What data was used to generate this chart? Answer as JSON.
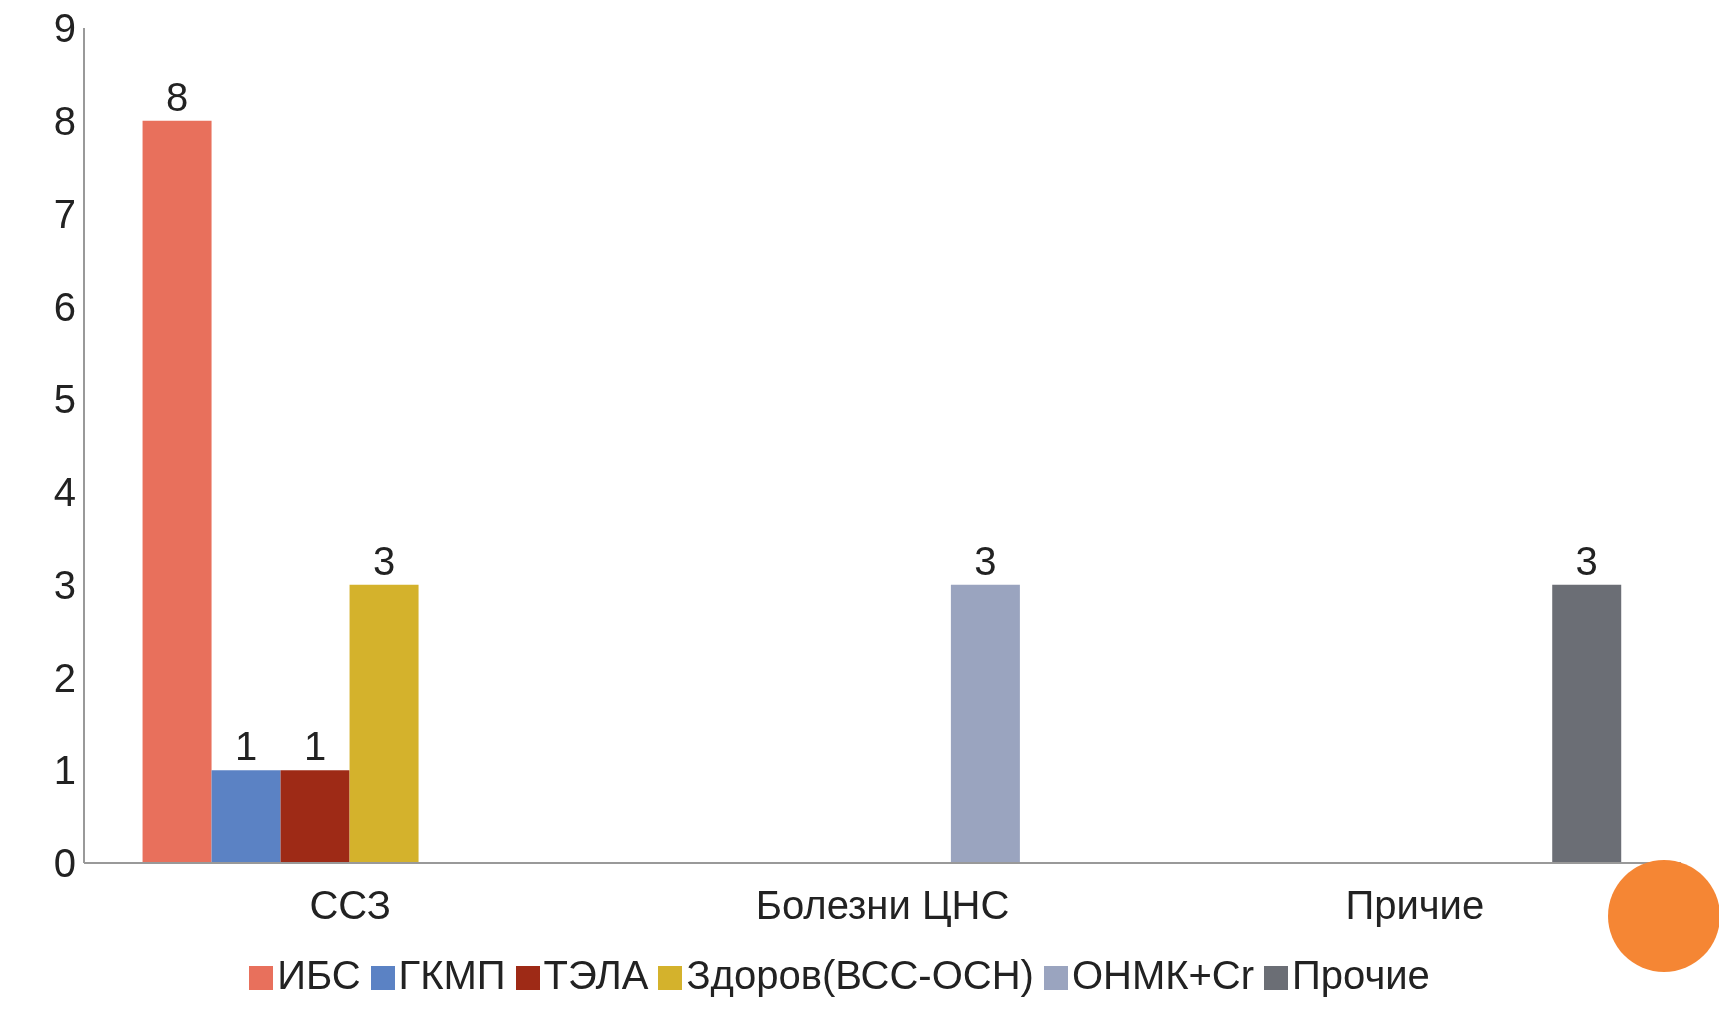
{
  "chart_data": {
    "type": "bar",
    "categories": [
      "ССЗ",
      "Болезни ЦНС",
      "Причие"
    ],
    "series": [
      {
        "name": "ИБС",
        "color": "#e8705c",
        "values": [
          8,
          null,
          null
        ]
      },
      {
        "name": "ГКМП",
        "color": "#5b82c4",
        "values": [
          1,
          null,
          null
        ]
      },
      {
        "name": "ТЭЛА",
        "color": "#9e2a16",
        "values": [
          1,
          null,
          null
        ]
      },
      {
        "name": "Здоров(ВСС-ОСН)",
        "color": "#d4b22c",
        "values": [
          3,
          null,
          null
        ]
      },
      {
        "name": "ОНМК+Cr",
        "color": "#9aa4bf",
        "values": [
          null,
          3,
          null
        ]
      },
      {
        "name": "Прочие",
        "color": "#6b6e75",
        "values": [
          null,
          null,
          3
        ]
      }
    ],
    "ylim": [
      0,
      9
    ],
    "yticks": [
      0,
      1,
      2,
      3,
      4,
      5,
      6,
      7,
      8,
      9
    ],
    "grid": false,
    "legend": "bottom",
    "data_labels": true
  }
}
